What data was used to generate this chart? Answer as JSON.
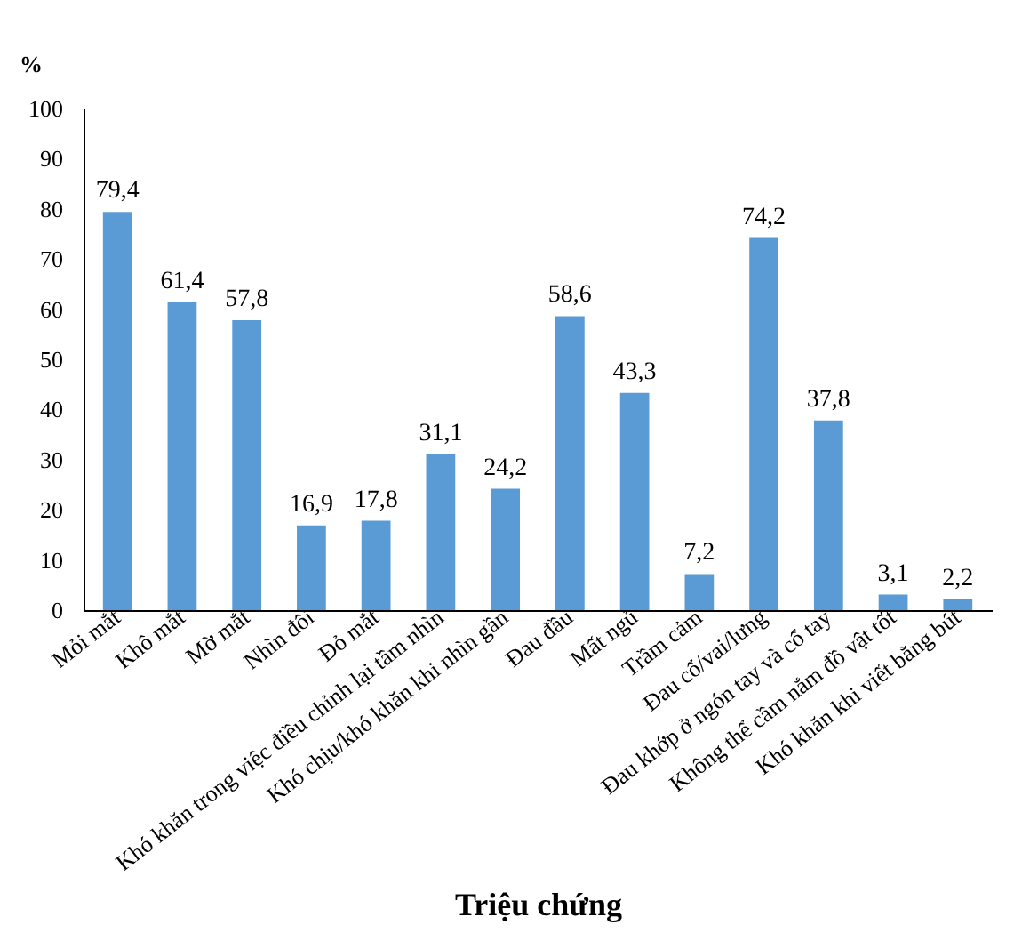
{
  "chart_data": {
    "type": "bar",
    "xlabel": "Triệu chứng",
    "ylabel": "%",
    "categories": [
      "Mỏi mắt",
      "Khô mắt",
      "Mờ mắt",
      "Nhìn đôi",
      "Đỏ mắt",
      "Khó khăn trong việc điều chỉnh lại tầm nhìn",
      "Khó chịu/khó khăn khi nhìn gần",
      "Đau đầu",
      "Mất ngủ",
      "Trầm cảm",
      "Đau cổ/vai/lưng",
      "Đau khớp ở ngón tay và cổ tay",
      "Không thể cầm nắm đồ vật tốt",
      "Khó khăn khi viết bằng bút"
    ],
    "values": [
      79.4,
      61.4,
      57.8,
      16.9,
      17.8,
      31.1,
      24.2,
      58.6,
      43.3,
      7.2,
      74.2,
      37.8,
      3.1,
      2.2
    ],
    "value_labels": [
      "79,4",
      "61,4",
      "57,8",
      "16,9",
      "17,8",
      "31,1",
      "24,2",
      "58,6",
      "43,3",
      "7,2",
      "74,2",
      "37,8",
      "3,1",
      "2,2"
    ],
    "color": "#5b9bd5",
    "ylim": [
      0,
      100
    ],
    "yticks": [
      0,
      10,
      20,
      30,
      40,
      50,
      60,
      70,
      80,
      90,
      100
    ],
    "grid": false
  }
}
